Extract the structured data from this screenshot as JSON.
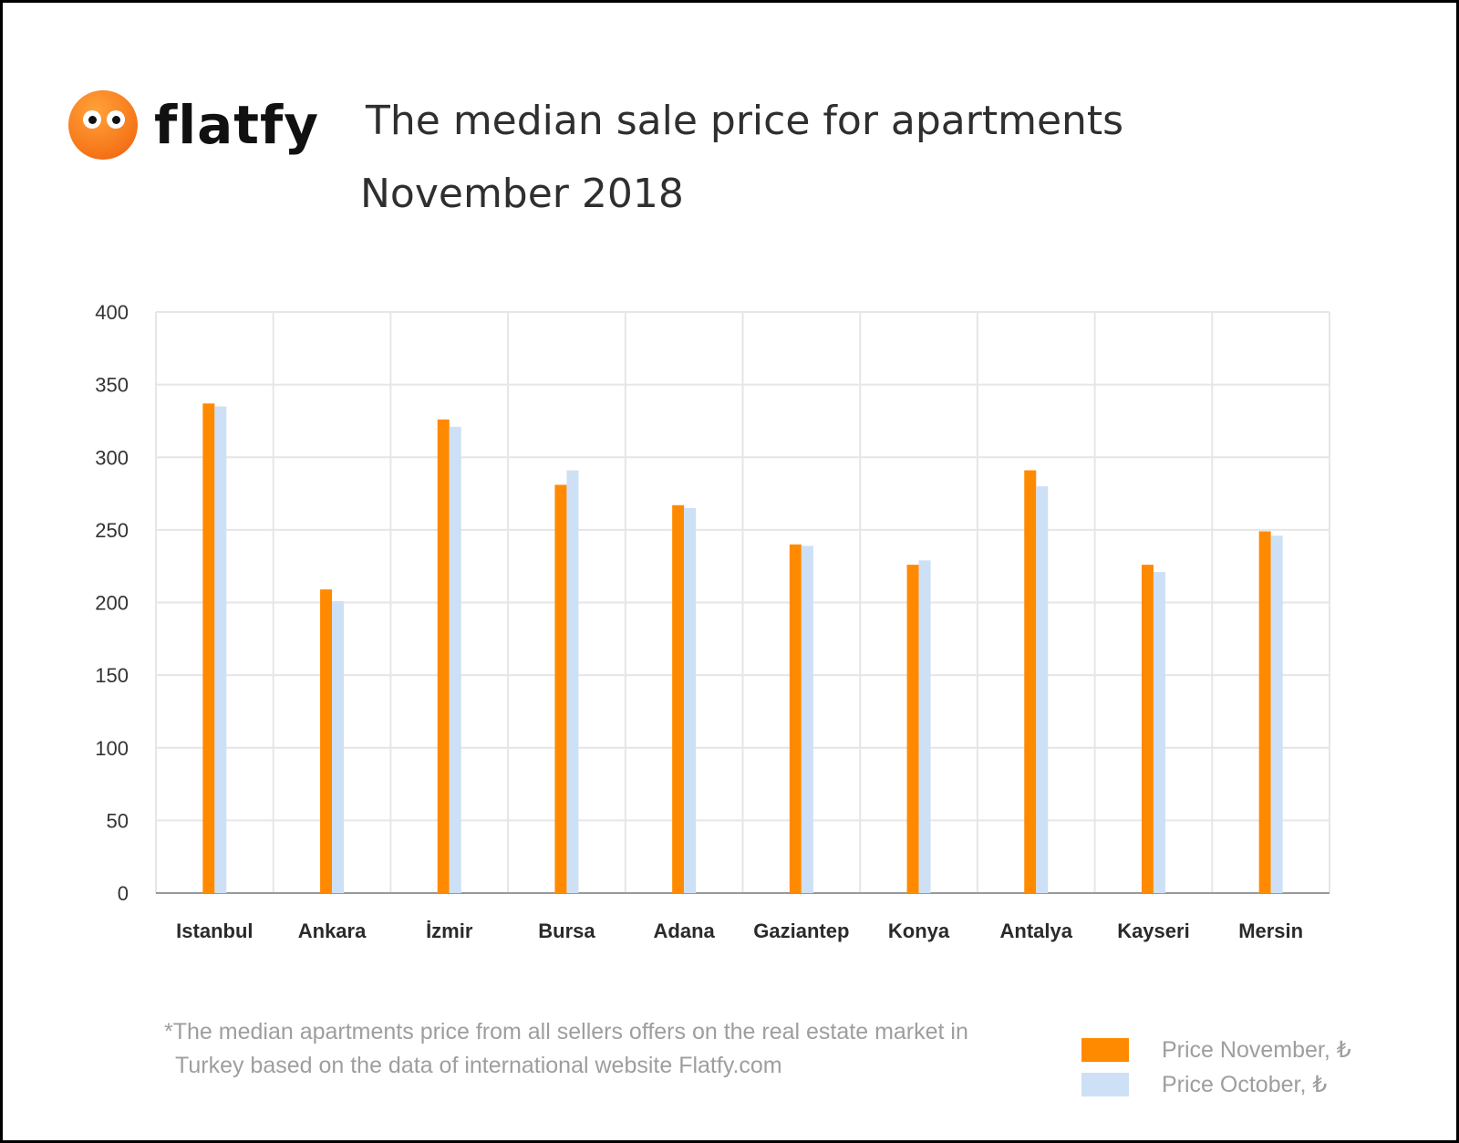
{
  "logo": {
    "text": "flatfy"
  },
  "header": {
    "title": "The median sale price for apartments",
    "subtitle": "November 2018"
  },
  "footnote": {
    "line1": "*The median apartments price from all sellers offers on the real estate market in",
    "line2": "Turkey based on the data of international website Flatfy.com"
  },
  "colors": {
    "november": "#ff8a00",
    "october": "#cde0f5",
    "grid": "#e6e6e6",
    "axis": "#9a9a9a",
    "tick_text": "#333333",
    "category_text": "#2a2a2a"
  },
  "chart_data": {
    "type": "bar",
    "categories": [
      "Istanbul",
      "Ankara",
      "İzmir",
      "Bursa",
      "Adana",
      "Gaziantep",
      "Konya",
      "Antalya",
      "Kayseri",
      "Mersin"
    ],
    "series": [
      {
        "name": "Price November, ₺",
        "values": [
          337,
          209,
          326,
          281,
          267,
          240,
          226,
          291,
          226,
          249
        ]
      },
      {
        "name": "Price October, ₺",
        "values": [
          335,
          201,
          321,
          291,
          265,
          239,
          229,
          280,
          221,
          246
        ]
      }
    ],
    "yticks": [
      "0",
      "50",
      "100",
      "150",
      "200",
      "250",
      "300",
      "350",
      "400"
    ],
    "ylim": [
      0,
      400
    ],
    "grid": true,
    "legend_position": "bottom-right"
  }
}
